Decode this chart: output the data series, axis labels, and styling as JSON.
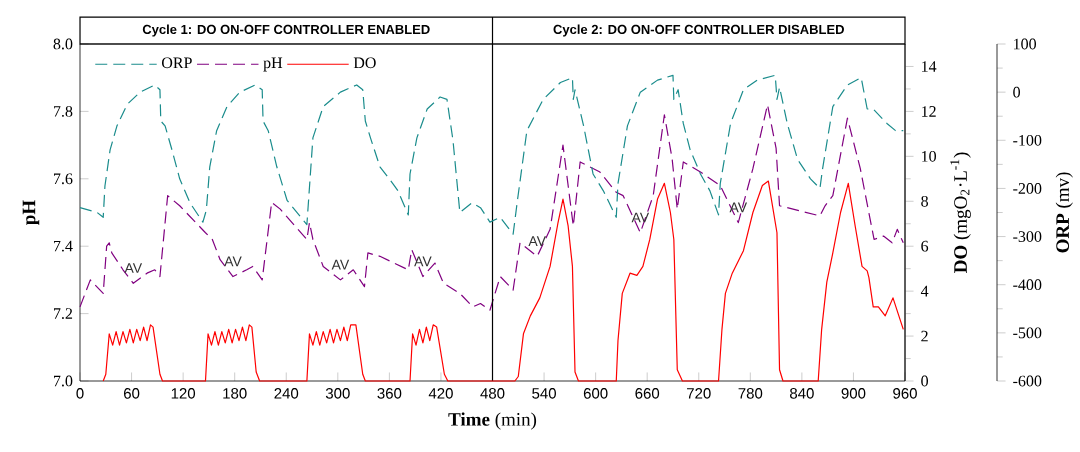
{
  "chart_data": {
    "type": "line",
    "xlabel": "**Time** (min)",
    "ylabel": "pH",
    "y2label": "**DO** (mgO$_{2}$·L$^{-1}$)",
    "y3label": "**ORP** (mv)",
    "xlim": [
      0,
      960
    ],
    "xticks": [
      0,
      60,
      120,
      180,
      240,
      300,
      360,
      420,
      480,
      540,
      600,
      660,
      720,
      780,
      840,
      900,
      960
    ],
    "ylim": [
      7,
      8
    ],
    "yticks": [
      {
        "value": 7,
        "label": "7.0"
      },
      7.2,
      7.4,
      7.6,
      7.8,
      {
        "value": 8,
        "label": "8.0"
      }
    ],
    "y2lim": [
      0,
      15
    ],
    "y2ticks": [
      0,
      2,
      4,
      6,
      8,
      10,
      12,
      14
    ],
    "y3lim": [
      -600,
      100
    ],
    "y3ticks": [
      -600,
      -500,
      -400,
      -300,
      -200,
      -100,
      0,
      100
    ],
    "legend": "top left",
    "ref_lines": [
      {
        "axis": "x",
        "value": 480
      }
    ],
    "annotations": [
      "Cycle 1: DO ON-OFF CONTROLLER ENABLED",
      "Cycle 2: DO ON-OFF CONTROLLER DISABLED",
      {
        "text": "AV",
        "x": 62,
        "y": 7.29
      },
      {
        "text": "AV",
        "x": 178,
        "y": 7.31
      },
      {
        "text": "AV",
        "x": 303,
        "y": 7.3
      },
      {
        "text": "AV",
        "x": 399,
        "y": 7.31
      },
      {
        "text": "AV",
        "x": 532,
        "y": 7.37
      },
      {
        "text": "AV",
        "x": 652,
        "y": 7.44
      },
      {
        "text": "AV",
        "x": 766,
        "y": 7.47
      }
    ],
    "series": [
      {
        "name": "ORP",
        "color": "#1a8c8c",
        "axis": "y3",
        "line_style": "dashed",
        "x": [
          0,
          20,
          27,
          29,
          35,
          43,
          55,
          70,
          87,
          93,
          94,
          99,
          107,
          116,
          128,
          143,
          147,
          151,
          159,
          171,
          186,
          204,
          212,
          213,
          219,
          229,
          241,
          264,
          271,
          283,
          303,
          322,
          329,
          332,
          338,
          349,
          364,
          370,
          382,
          384,
          392,
          404,
          419,
          427,
          434,
          442,
          456,
          466,
          477,
          489,
          504,
          509,
          520,
          539,
          559,
          573,
          574,
          576,
          586,
          597,
          609,
          624,
          626,
          637,
          652,
          672,
          690,
          691,
          696,
          702,
          710,
          722,
          733,
          743,
          745,
          757,
          772,
          788,
          809,
          811,
          814,
          823,
          835,
          850,
          861,
          864,
          876,
          893,
          909,
          916,
          923,
          939,
          949,
          958
        ],
        "values": [
          -240,
          -250,
          -260,
          -195,
          -120,
          -70,
          -25,
          0,
          15,
          5,
          -60,
          -70,
          -120,
          -180,
          -230,
          -270,
          -245,
          -155,
          -80,
          -30,
          0,
          15,
          5,
          -60,
          -80,
          -155,
          -225,
          -275,
          -95,
          -30,
          0,
          15,
          5,
          -60,
          -95,
          -155,
          -190,
          -205,
          -255,
          -170,
          -95,
          -35,
          -10,
          -15,
          -100,
          -250,
          -230,
          -240,
          -270,
          -260,
          -295,
          -225,
          -80,
          -15,
          20,
          30,
          -15,
          5,
          -70,
          -170,
          -205,
          -260,
          -190,
          -70,
          0,
          25,
          35,
          -15,
          5,
          -65,
          -120,
          -170,
          -205,
          -255,
          -190,
          -65,
          5,
          25,
          35,
          -15,
          10,
          -65,
          -140,
          -180,
          -200,
          -160,
          -30,
          15,
          30,
          -35,
          -35,
          -65,
          -80,
          -80
        ]
      },
      {
        "name": "pH",
        "color": "#800080",
        "axis": "y",
        "line_style": "dashed",
        "x": [
          0,
          12,
          27,
          31,
          34,
          37,
          50,
          62,
          78,
          87,
          93,
          102,
          116,
          146,
          154,
          163,
          178,
          194,
          201,
          212,
          223,
          233,
          264,
          267,
          271,
          283,
          303,
          318,
          331,
          335,
          349,
          382,
          386,
          399,
          413,
          423,
          442,
          457,
          466,
          477,
          489,
          504,
          512,
          532,
          547,
          562,
          574,
          582,
          605,
          624,
          632,
          652,
          667,
          680,
          689,
          695,
          702,
          722,
          745,
          766,
          783,
          800,
          810,
          814,
          861,
          867,
          876,
          893,
          908,
          924,
          935,
          945,
          951,
          958
        ],
        "values": [
          7.22,
          7.3,
          7.26,
          7.4,
          7.41,
          7.38,
          7.33,
          7.29,
          7.32,
          7.33,
          7.31,
          7.55,
          7.52,
          7.44,
          7.42,
          7.36,
          7.31,
          7.33,
          7.34,
          7.3,
          7.53,
          7.51,
          7.42,
          7.47,
          7.42,
          7.34,
          7.3,
          7.33,
          7.28,
          7.38,
          7.37,
          7.33,
          7.39,
          7.31,
          7.35,
          7.29,
          7.26,
          7.22,
          7.23,
          7.21,
          7.31,
          7.27,
          7.41,
          7.37,
          7.45,
          7.7,
          7.46,
          7.65,
          7.62,
          7.56,
          7.55,
          7.44,
          7.55,
          7.79,
          7.66,
          7.51,
          7.65,
          7.62,
          7.58,
          7.47,
          7.63,
          7.82,
          7.69,
          7.52,
          7.49,
          7.52,
          7.55,
          7.78,
          7.63,
          7.42,
          7.43,
          7.41,
          7.45,
          7.41
        ]
      },
      {
        "name": "DO",
        "color": "#ff0000",
        "axis": "y2",
        "line_style": "solid",
        "x": [
          27,
          30,
          34,
          38,
          42,
          46,
          50,
          54,
          58,
          62,
          66,
          70,
          74,
          78,
          82,
          85,
          93,
          96,
          146,
          149,
          153,
          157,
          161,
          165,
          169,
          173,
          177,
          181,
          185,
          189,
          193,
          197,
          200,
          205,
          209,
          264,
          267,
          271,
          275,
          279,
          283,
          287,
          291,
          295,
          299,
          303,
          307,
          311,
          315,
          321,
          329,
          332,
          384,
          387,
          391,
          395,
          399,
          403,
          407,
          411,
          415,
          424,
          428,
          506,
          510,
          516,
          524,
          535,
          547,
          556,
          562,
          568,
          573,
          576,
          580,
          624,
          626,
          631,
          640,
          648,
          655,
          663,
          672,
          680,
          687,
          691,
          695,
          701,
          743,
          747,
          751,
          759,
          772,
          783,
          794,
          801,
          811,
          814,
          818,
          859,
          863,
          869,
          876,
          885,
          894,
          902,
          910,
          916,
          918,
          923,
          929,
          937,
          946,
          952,
          958
        ],
        "values": [
          0,
          0.3,
          2.1,
          1.6,
          2.2,
          1.6,
          2.2,
          1.7,
          2.3,
          1.7,
          2.3,
          1.8,
          2.4,
          1.8,
          2.5,
          2.4,
          0.3,
          0,
          0,
          2.1,
          1.6,
          2.2,
          1.6,
          2.2,
          1.7,
          2.3,
          1.7,
          2.3,
          1.8,
          2.4,
          1.8,
          2.5,
          2.4,
          0.4,
          0,
          0,
          2.1,
          1.6,
          2.2,
          1.6,
          2.2,
          1.7,
          2.3,
          1.7,
          2.3,
          1.8,
          2.4,
          1.8,
          2.5,
          2.5,
          0.3,
          0,
          0,
          2.1,
          1.6,
          2.3,
          1.7,
          2.4,
          1.8,
          2.5,
          2.4,
          0.3,
          0,
          0,
          0.2,
          2.1,
          2.9,
          3.7,
          5.1,
          7.0,
          8.1,
          6.9,
          5.1,
          0.4,
          0,
          0,
          1.8,
          3.9,
          4.8,
          4.7,
          5.1,
          6.3,
          8.1,
          8.8,
          7.5,
          6.3,
          0.5,
          0,
          0,
          2.3,
          3.9,
          4.8,
          5.8,
          7.5,
          8.7,
          8.9,
          6.6,
          0.5,
          0,
          0,
          2.3,
          4.4,
          5.7,
          7.5,
          8.8,
          6.9,
          5.1,
          4.9,
          4.6,
          3.3,
          3.3,
          2.9,
          3.7,
          3.0,
          2.3
        ]
      }
    ]
  }
}
